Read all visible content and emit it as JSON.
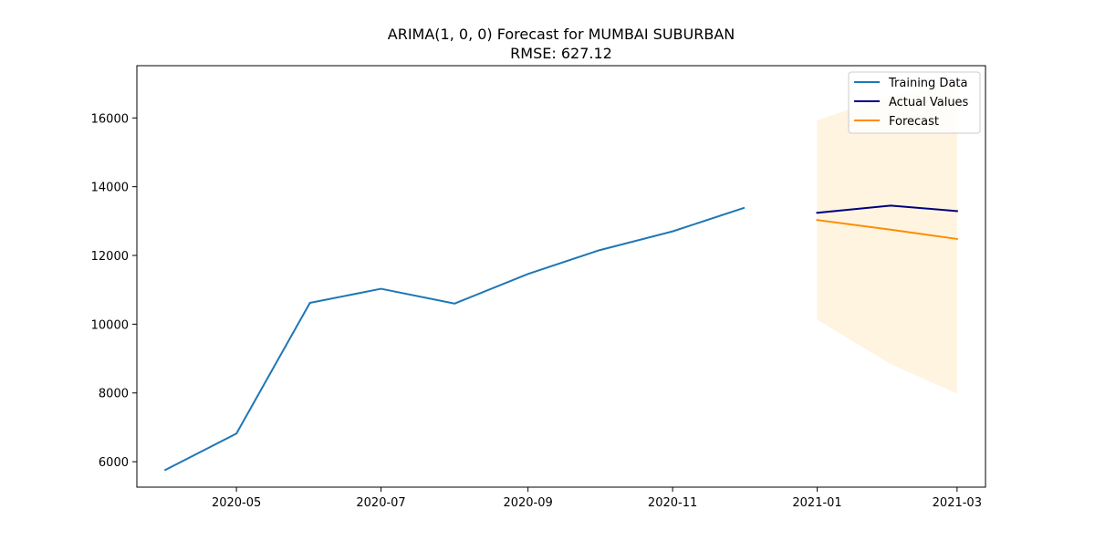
{
  "chart_data": {
    "type": "line",
    "title": "ARIMA(1, 0, 0) Forecast for MUMBAI SUBURBAN",
    "subtitle": "RMSE: 627.12",
    "xlabel": "",
    "ylabel": "",
    "x_axis_type": "date",
    "xlim": [
      "2020-03-20",
      "2021-03-13"
    ],
    "ylim": [
      5260,
      17520
    ],
    "x_ticks": [
      "2020-05-01",
      "2020-07-01",
      "2020-09-01",
      "2020-11-01",
      "2021-01-01",
      "2021-03-01"
    ],
    "x_tick_labels": [
      "2020-05",
      "2020-07",
      "2020-09",
      "2020-11",
      "2021-01",
      "2021-03"
    ],
    "y_ticks": [
      6000,
      8000,
      10000,
      12000,
      14000,
      16000
    ],
    "y_tick_labels": [
      "6000",
      "8000",
      "10000",
      "12000",
      "14000",
      "16000"
    ],
    "grid": false,
    "legend_position": "top-right",
    "series": [
      {
        "name": "Training Data",
        "color": "#1f77b4",
        "x": [
          "2020-04-01",
          "2020-05-01",
          "2020-06-01",
          "2020-07-01",
          "2020-08-01",
          "2020-09-01",
          "2020-10-01",
          "2020-11-01",
          "2020-12-01"
        ],
        "y": [
          5760,
          6820,
          10620,
          11030,
          10600,
          11460,
          12150,
          12700,
          13380
        ]
      },
      {
        "name": "Actual Values",
        "color": "#000080",
        "x": [
          "2021-01-01",
          "2021-02-01",
          "2021-03-01"
        ],
        "y": [
          13240,
          13450,
          13290
        ]
      },
      {
        "name": "Forecast",
        "color": "#ff8c00",
        "x": [
          "2021-01-01",
          "2021-02-01",
          "2021-03-01"
        ],
        "y": [
          13030,
          12750,
          12480
        ]
      }
    ],
    "confidence_band": {
      "color": "#ffa500",
      "opacity": 0.12,
      "x": [
        "2021-01-01",
        "2021-02-01",
        "2021-03-01"
      ],
      "lower": [
        10130,
        8840,
        7980
      ],
      "upper": [
        15930,
        16660,
        16980
      ]
    }
  }
}
